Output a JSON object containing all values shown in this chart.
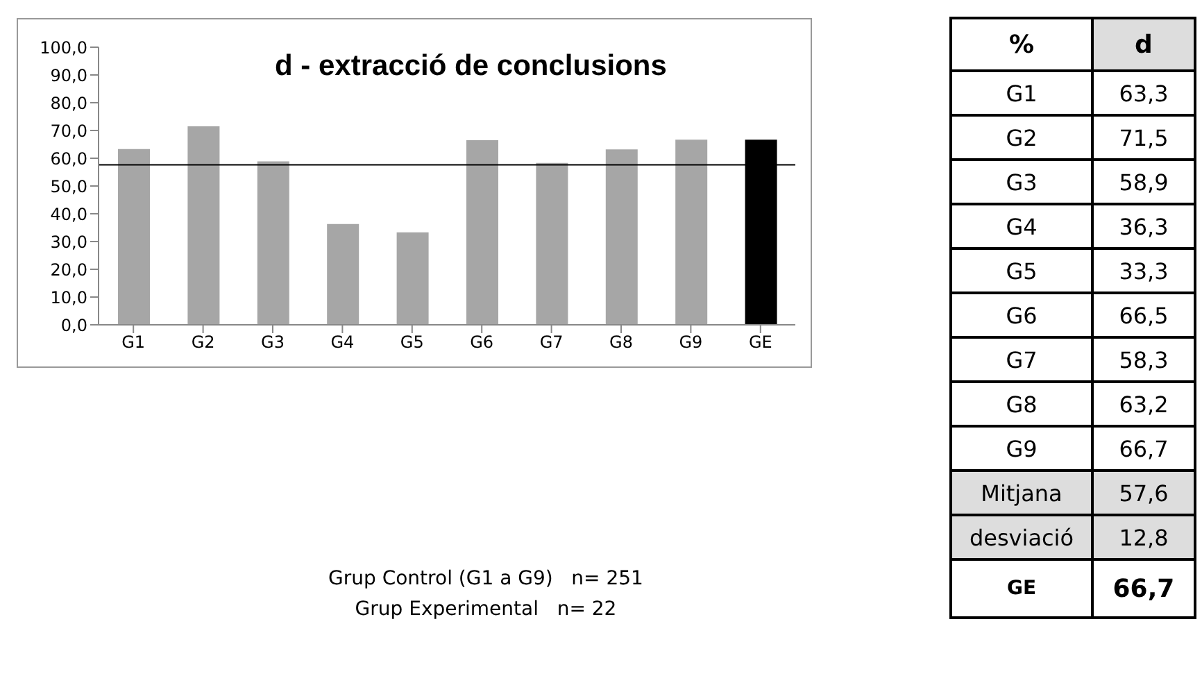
{
  "chart_data": [
    {
      "type": "bar",
      "title": "d - extracció de conclusions",
      "categories": [
        "G1",
        "G2",
        "G3",
        "G4",
        "G5",
        "G6",
        "G7",
        "G8",
        "G9",
        "GE"
      ],
      "values": [
        63.3,
        71.5,
        58.9,
        36.3,
        33.3,
        66.5,
        58.3,
        63.2,
        66.7,
        66.7
      ],
      "colors": [
        "#a6a6a6",
        "#a6a6a6",
        "#a6a6a6",
        "#a6a6a6",
        "#a6a6a6",
        "#a6a6a6",
        "#a6a6a6",
        "#a6a6a6",
        "#a6a6a6",
        "#000000"
      ],
      "ylim": [
        0,
        100
      ],
      "yticks": [
        {
          "value": 0,
          "label": "0,0"
        },
        {
          "value": 10,
          "label": "10,0"
        },
        {
          "value": 20,
          "label": "20,0"
        },
        {
          "value": 30,
          "label": "30,0"
        },
        {
          "value": 40,
          "label": "40,0"
        },
        {
          "value": 50,
          "label": "50,0"
        },
        {
          "value": 60,
          "label": "60,0"
        },
        {
          "value": 70,
          "label": "70,0"
        },
        {
          "value": 80,
          "label": "80,0"
        },
        {
          "value": 90,
          "label": "90,0"
        },
        {
          "value": 100,
          "label": "100,0"
        }
      ],
      "ref_lines": [
        {
          "axis": "y",
          "value": 57.6,
          "color": "#000000"
        }
      ],
      "annotations": [
        "Grup Control (G1 a G9)   n= 251",
        "Grup Experimental   n= 22"
      ]
    },
    {
      "type": "other",
      "categories": [
        "G1",
        "G2",
        "G3",
        "G4",
        "G5",
        "G6",
        "G7",
        "G8",
        "G9",
        "Mitjana",
        "desviació",
        "GE"
      ],
      "value_labels": [
        "63,3",
        "71,5",
        "58,9",
        "36,3",
        "33,3",
        "66,5",
        "58,3",
        "63,2",
        "66,7",
        "57,6",
        "12,8",
        "66,7"
      ],
      "annotations": [
        "%",
        "d"
      ]
    }
  ]
}
